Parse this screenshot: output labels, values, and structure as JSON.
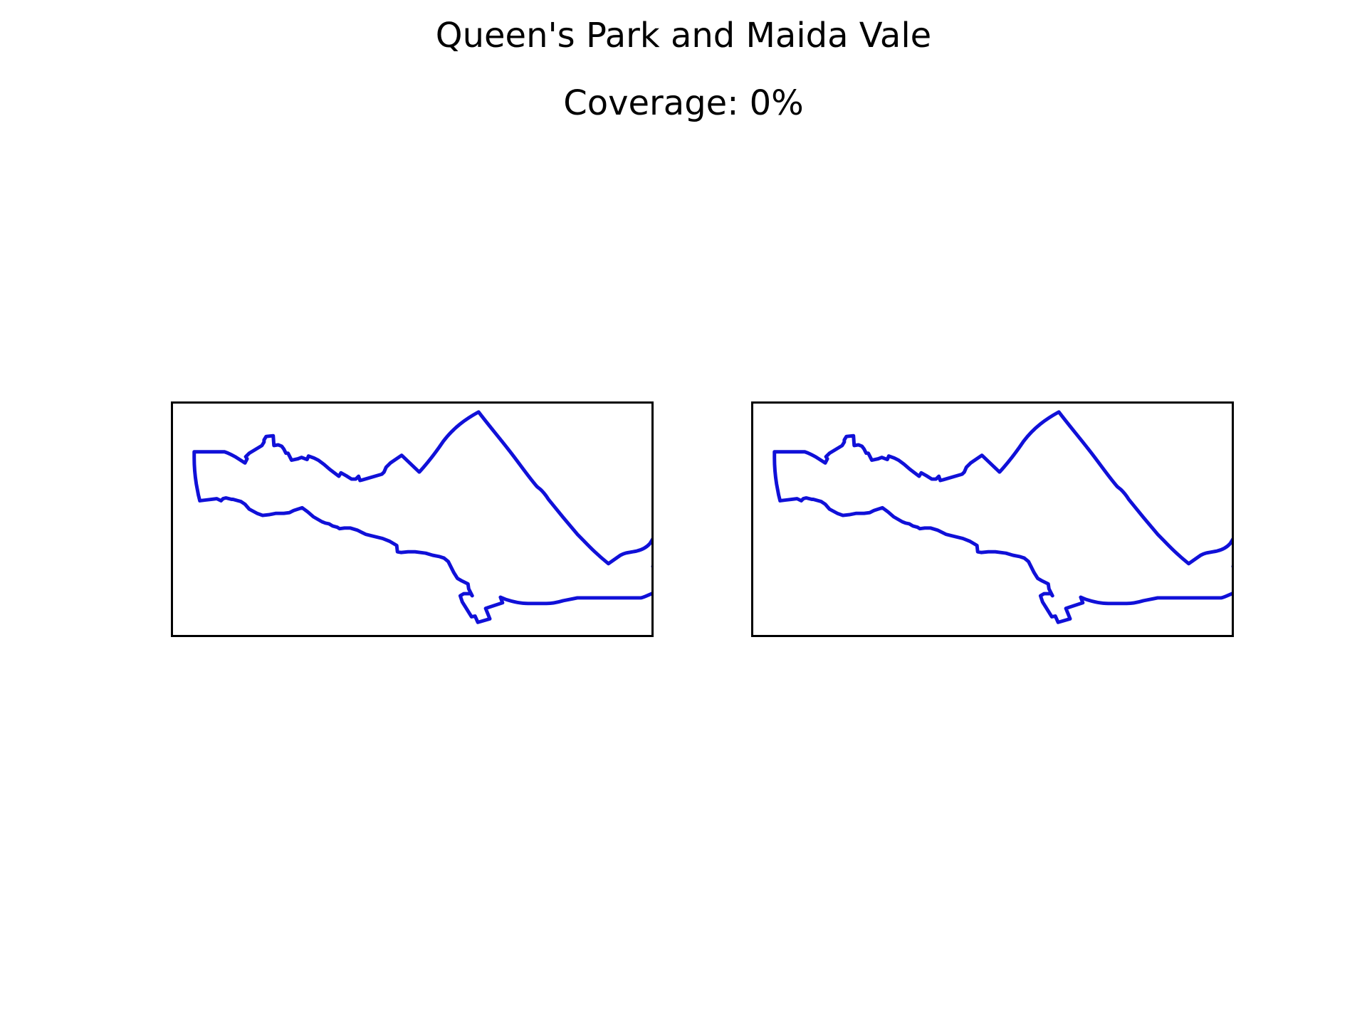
{
  "figure": {
    "title": "Queen's Park and Maida Vale",
    "subtitle": "Coverage: 0%"
  },
  "map": {
    "outline_color": "#1010d8",
    "panel_border_color": "#000000",
    "panels": [
      {
        "name": "map-panel-left"
      },
      {
        "name": "map-panel-right"
      }
    ]
  }
}
